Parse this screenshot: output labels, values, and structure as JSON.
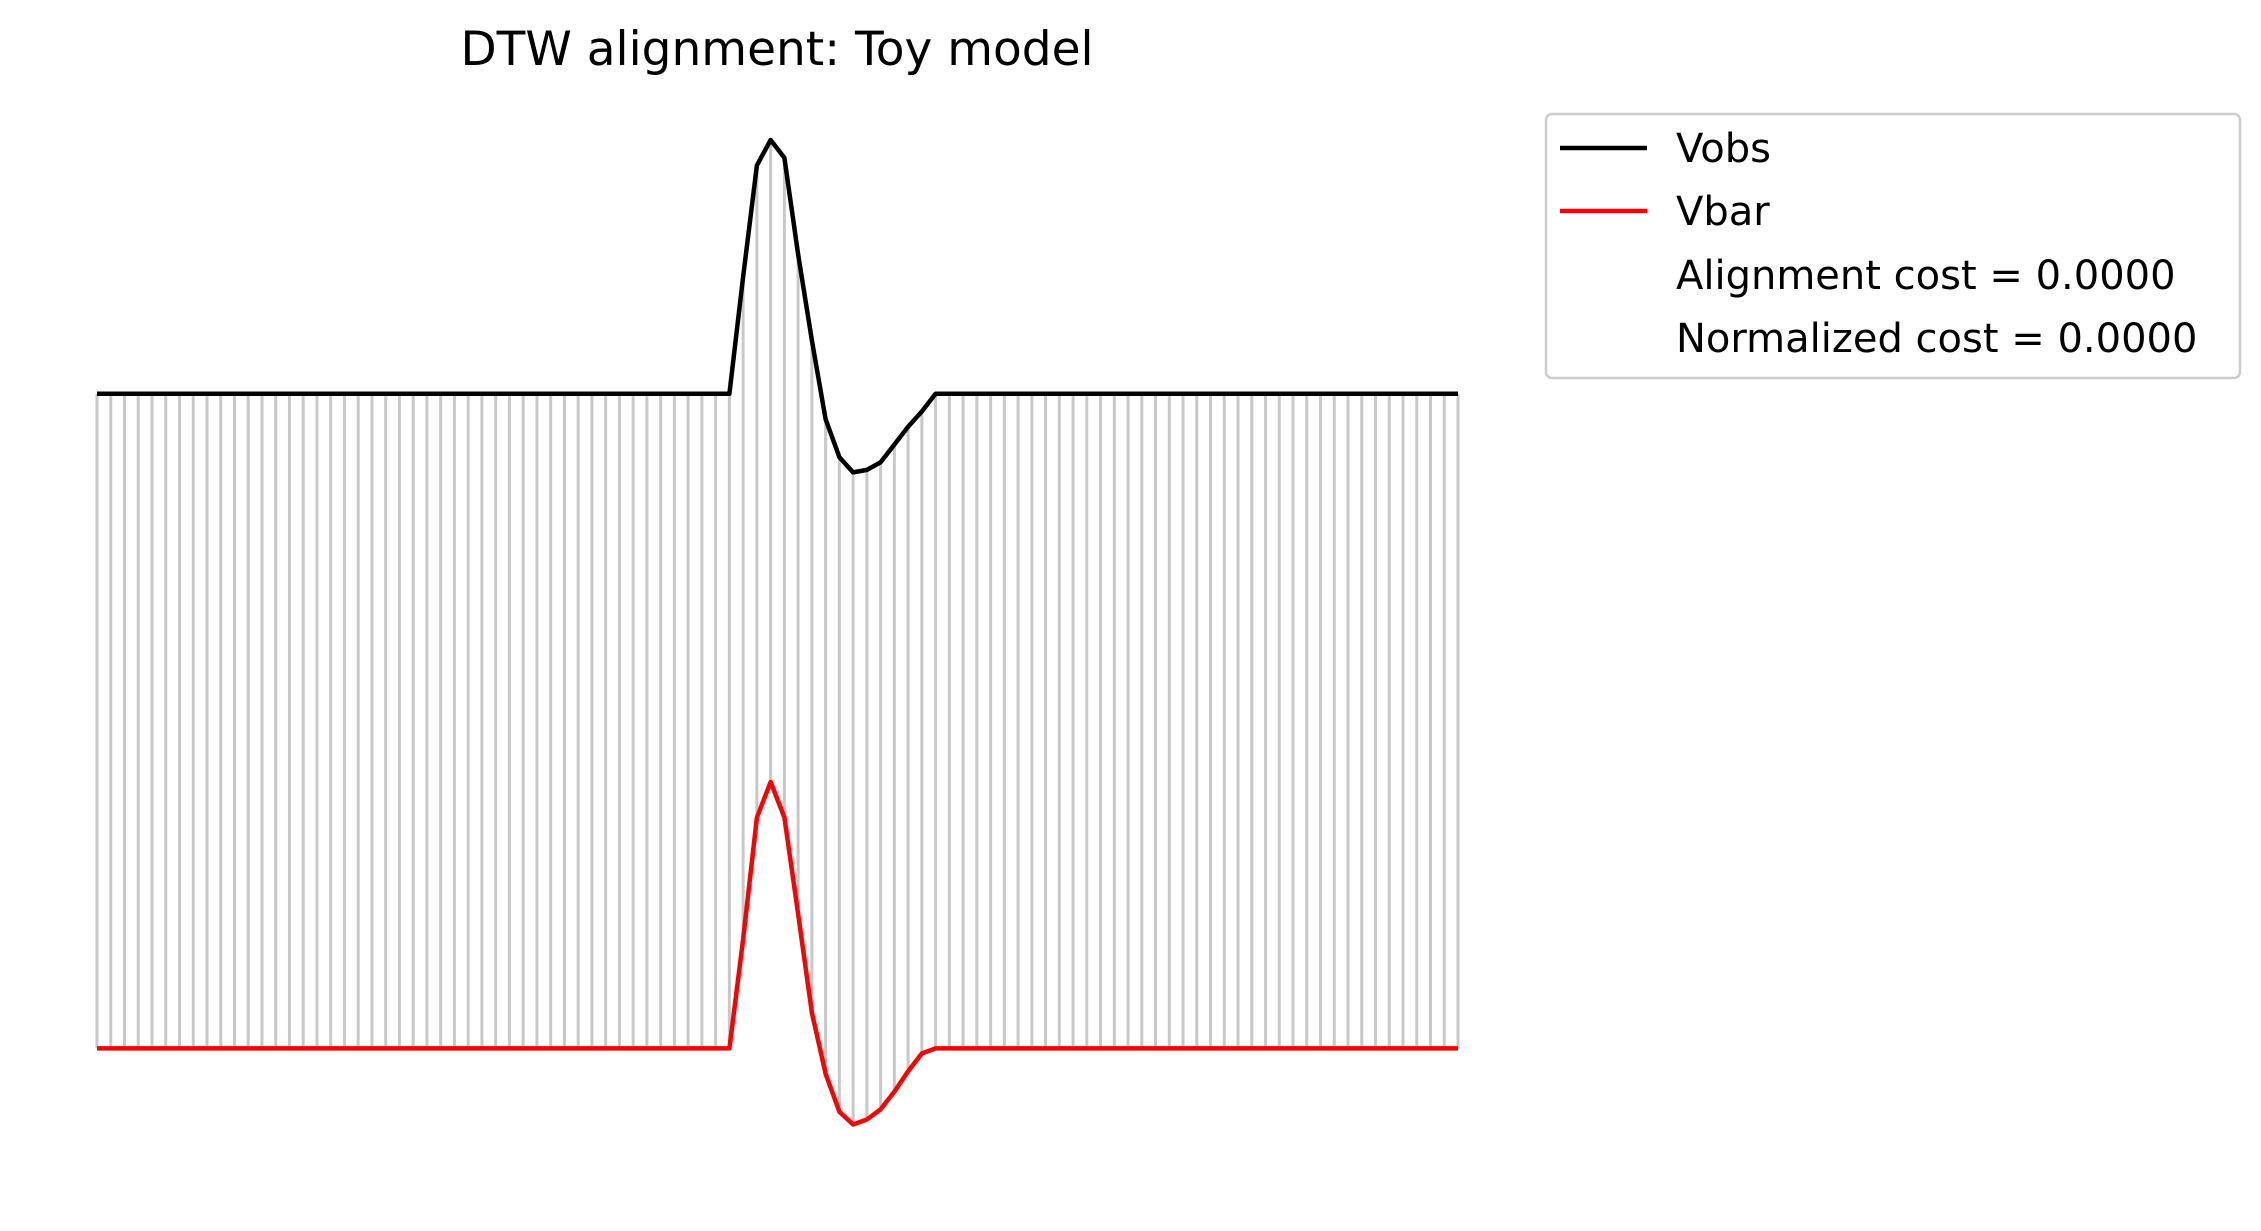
{
  "chart_data": {
    "type": "line",
    "title": "DTW alignment: Toy model",
    "xlabel": "",
    "ylabel": "",
    "axes_visible": false,
    "grid": false,
    "legend_position": "upper right, outside plot",
    "connector_color": "#c8c8c8",
    "n_points": 100,
    "x": [
      0,
      99
    ],
    "series": [
      {
        "name": "Vobs",
        "color": "#000000",
        "offset": 0,
        "baseline": 0.0,
        "peak_points": [
          [
            46,
            0.0
          ],
          [
            47,
            0.46
          ],
          [
            48,
            0.9
          ],
          [
            49,
            1.0
          ],
          [
            50,
            0.93
          ],
          [
            51,
            0.55
          ],
          [
            52,
            0.21
          ],
          [
            53,
            -0.1
          ],
          [
            54,
            -0.25
          ],
          [
            55,
            -0.31
          ],
          [
            56,
            -0.3
          ],
          [
            57,
            -0.27
          ],
          [
            58,
            -0.2
          ],
          [
            59,
            -0.13
          ],
          [
            60,
            -0.07
          ],
          [
            61,
            0.0
          ]
        ]
      },
      {
        "name": "Vbar",
        "color": "#ff0000",
        "offset": -2.58,
        "baseline": -2.58,
        "peak_points": [
          [
            46,
            -2.58
          ],
          [
            47,
            -2.15
          ],
          [
            48,
            -1.67
          ],
          [
            49,
            -1.53
          ],
          [
            50,
            -1.67
          ],
          [
            51,
            -2.05
          ],
          [
            52,
            -2.44
          ],
          [
            53,
            -2.68
          ],
          [
            54,
            -2.83
          ],
          [
            55,
            -2.88
          ],
          [
            56,
            -2.86
          ],
          [
            57,
            -2.82
          ],
          [
            58,
            -2.75
          ],
          [
            59,
            -2.67
          ],
          [
            60,
            -2.6
          ],
          [
            61,
            -2.58
          ]
        ]
      }
    ],
    "ylim": [
      -3.0,
      1.0
    ],
    "xlim": [
      0,
      99
    ]
  },
  "legend": {
    "items": [
      {
        "label": "Vobs",
        "color": "#000000"
      },
      {
        "label": "Vbar",
        "color": "#ff0000"
      },
      {
        "label": "Alignment cost = 0.0000",
        "color": ""
      },
      {
        "label": "Normalized cost = 0.0000",
        "color": ""
      }
    ]
  }
}
